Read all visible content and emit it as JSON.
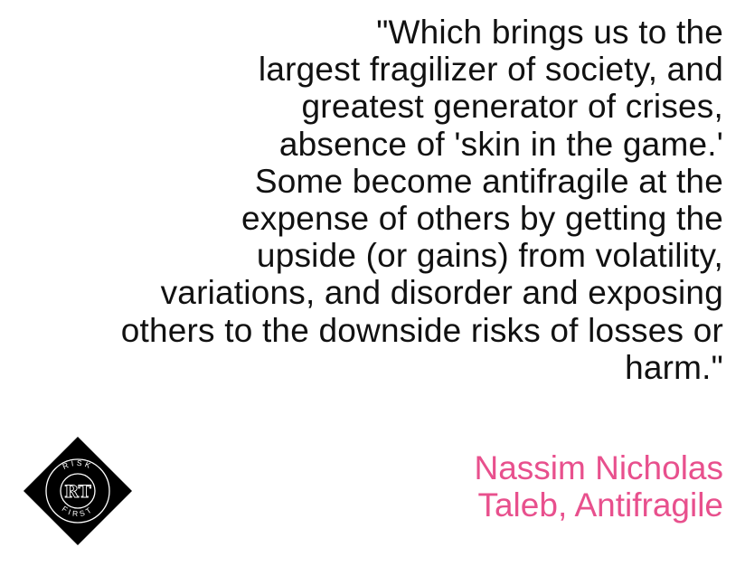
{
  "quote": {
    "lines": [
      "\"Which brings us to the",
      "largest fragilizer of society, and",
      "greatest generator of crises,",
      "absence of 'skin in the game.'",
      "Some become antifragile at the",
      "expense of others by getting the",
      "upside (or gains) from volatility,",
      "variations, and disorder and exposing",
      "others to the downside risks of losses or",
      "harm.\""
    ]
  },
  "attribution": {
    "lines": [
      "Nassim Nicholas",
      "Taleb, Antifragile"
    ]
  },
  "logo": {
    "icon": "risk-first-logo-icon",
    "top_text": "RISK",
    "bottom_text": "FIRST",
    "monogram": "RT"
  },
  "colors": {
    "text": "#111111",
    "attribution": "#e8508d",
    "logo_bg": "#000000",
    "logo_fg": "#ffffff"
  }
}
